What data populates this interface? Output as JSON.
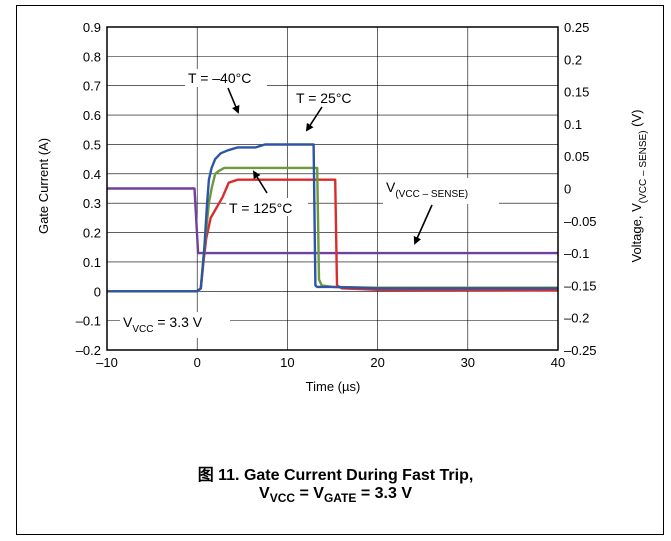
{
  "chart_data": {
    "type": "line",
    "xlabel": "Time (µs)",
    "ylabel": "Gate Current (A)",
    "y2label_parts": [
      "Voltage, V",
      "(VCC – SENSE)",
      " (V)"
    ],
    "xlim": [
      -10,
      40
    ],
    "ylim": [
      -0.2,
      0.9
    ],
    "y2lim": [
      -0.25,
      0.25
    ],
    "x_ticks": [
      "–10",
      "0",
      "10",
      "20",
      "30",
      "40"
    ],
    "y_ticks": [
      "–0.2",
      "–0.1",
      "0",
      "0.1",
      "0.2",
      "0.3",
      "0.4",
      "0.5",
      "0.6",
      "0.7",
      "0.8",
      "0.9"
    ],
    "y2_ticks": [
      "–0.25",
      "–0.2",
      "–0.15",
      "–0.1",
      "–0.05",
      "0",
      "0.05",
      "0.1",
      "0.15",
      "0.2",
      "0.25"
    ],
    "grid": true,
    "series": [
      {
        "name": "T = –40°C",
        "axis": "left",
        "color": "#2e55a5",
        "x": [
          -10,
          0,
          0.4,
          0.8,
          1.1,
          1.3,
          1.6,
          2.0,
          2.6,
          3.4,
          4.5,
          6.5,
          7.5,
          12.9,
          13.1,
          13.3,
          15,
          20,
          40
        ],
        "y": [
          0,
          0,
          0.01,
          0.15,
          0.3,
          0.38,
          0.42,
          0.45,
          0.47,
          0.48,
          0.49,
          0.49,
          0.5,
          0.5,
          0.02,
          0.015,
          0.015,
          0.01,
          0.01
        ]
      },
      {
        "name": "T = 25°C",
        "axis": "left",
        "color": "#6c9a3c",
        "x": [
          -10,
          0,
          0.4,
          0.9,
          1.3,
          1.6,
          2.0,
          2.4,
          3.0,
          4.0,
          13.3,
          13.5,
          13.8,
          15,
          20,
          40
        ],
        "y": [
          0,
          0,
          0.01,
          0.18,
          0.3,
          0.35,
          0.4,
          0.41,
          0.42,
          0.42,
          0.42,
          0.04,
          0.02,
          0.015,
          0.012,
          0.012
        ]
      },
      {
        "name": "T = 125°C",
        "axis": "left",
        "color": "#d82d2d",
        "x": [
          -10,
          0,
          0.4,
          0.7,
          1.0,
          1.5,
          2.8,
          3.5,
          4.5,
          15.3,
          15.5,
          16,
          20,
          40
        ],
        "y": [
          0,
          0,
          0.01,
          0.1,
          0.18,
          0.25,
          0.32,
          0.37,
          0.38,
          0.38,
          0.02,
          0.01,
          0.005,
          0.003
        ]
      },
      {
        "name": "V(VCC – SENSE)",
        "axis": "right",
        "color": "#7040a0",
        "x": [
          -10,
          -0.3,
          0.1,
          40
        ],
        "y": [
          0,
          0,
          -0.1,
          -0.1
        ]
      }
    ],
    "annotations": {
      "t_minus40": "T = –40°C",
      "t_25": "T = 25°C",
      "t_125": "T = 125°C",
      "v_sense_main": "V",
      "v_sense_sub": "(VCC – SENSE)",
      "vvcc_main": "V",
      "vvcc_sub": "VCC",
      "vvcc_value": " = 3.3 V"
    }
  },
  "caption": {
    "line1": "图 11. Gate Current During Fast Trip,",
    "line2_v1": "V",
    "line2_sub1": "VCC",
    "line2_eq": " = V",
    "line2_sub2": "GATE",
    "line2_val": " = 3.3 V"
  }
}
